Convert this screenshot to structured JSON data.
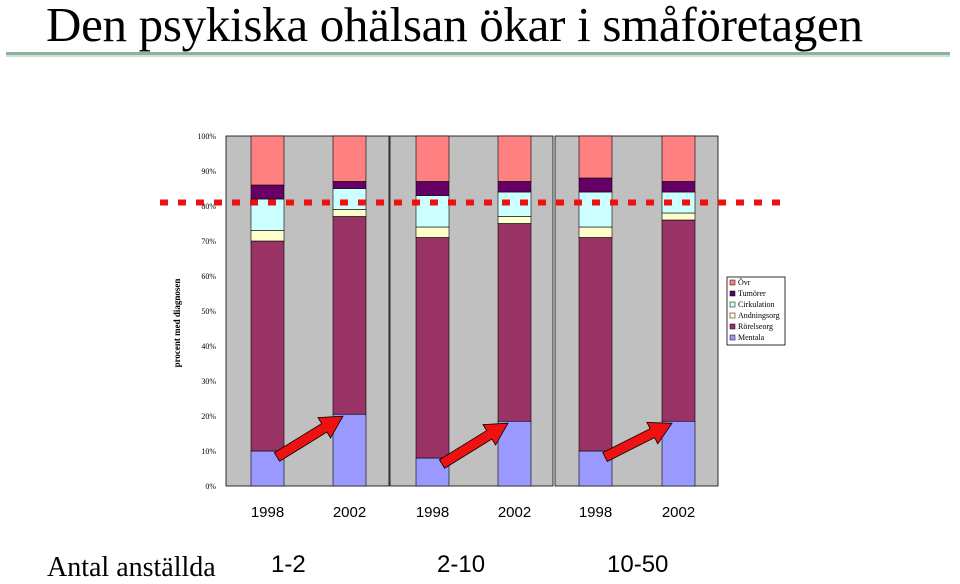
{
  "page": {
    "title": "Den psykiska ohälsan ökar i småföretagen",
    "footer_label": "Antal anställda",
    "group_labels": [
      "1-2",
      "2-10",
      "10-50"
    ]
  },
  "chart_data": {
    "type": "bar",
    "stacked": true,
    "categories": [
      "1998",
      "2002",
      "1998",
      "2002",
      "1998",
      "2002"
    ],
    "groups": [
      "1-2",
      "1-2",
      "2-10",
      "2-10",
      "10-50",
      "10-50"
    ],
    "ylabel": "procent med diagnosen",
    "ylim": [
      0,
      100
    ],
    "yticks": [
      "0%",
      "10%",
      "20%",
      "30%",
      "40%",
      "50%",
      "60%",
      "70%",
      "80%",
      "90%",
      "100%"
    ],
    "grid": false,
    "legend_position": "right",
    "series": [
      {
        "name": "Mentala",
        "color": "#9999ff",
        "values": [
          10,
          20.5,
          8,
          18.5,
          10,
          18.5
        ]
      },
      {
        "name": "Rörelseorg",
        "color": "#993366",
        "values": [
          60,
          56.5,
          63,
          56.5,
          61,
          57.5
        ]
      },
      {
        "name": "Andningsorg",
        "color": "#ffffcc",
        "values": [
          3,
          2,
          3,
          2,
          3,
          2
        ]
      },
      {
        "name": "Cirkulation",
        "color": "#ccffff",
        "values": [
          9,
          6,
          9,
          7,
          10,
          6
        ]
      },
      {
        "name": "Tumörer",
        "color": "#660066",
        "values": [
          4,
          2,
          4,
          3,
          4,
          3
        ]
      },
      {
        "name": "Övr",
        "color": "#ff8080",
        "values": [
          14,
          13,
          13,
          13,
          12,
          13
        ]
      }
    ],
    "reference_line": {
      "value": 81,
      "color": "#ee1111",
      "style": "dashed"
    },
    "arrows_color": "#ee1111"
  }
}
